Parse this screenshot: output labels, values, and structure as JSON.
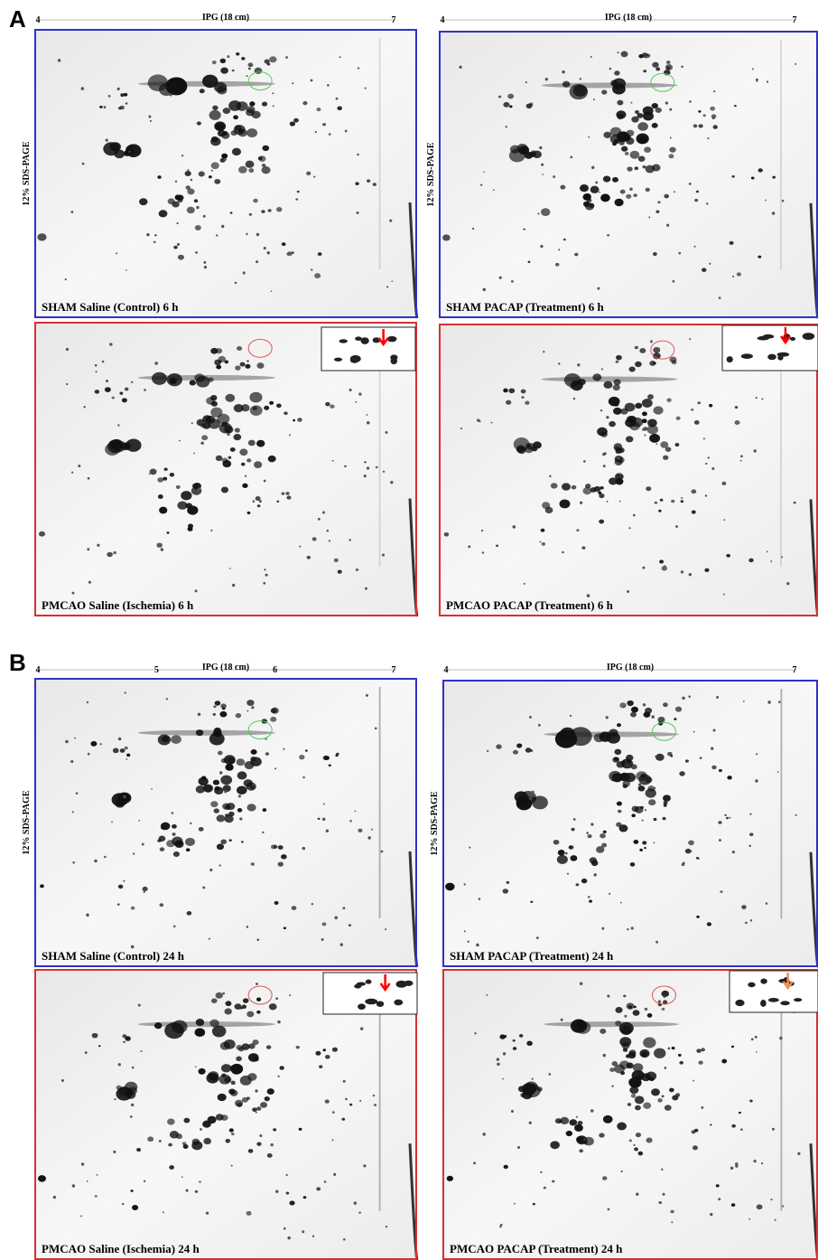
{
  "panels": [
    {
      "label": "A",
      "gels": [
        {
          "caption": "SHAM Saline (Control) 6 h",
          "ipg": "IPG (18 cm)",
          "ticks": [
            "4",
            "7"
          ],
          "sds": "12% SDS-PAGE"
        },
        {
          "caption": "SHAM PACAP (Treatment) 6 h",
          "ipg": "IPG (18 cm)",
          "ticks": [
            "4",
            "7"
          ],
          "sds": "12% SDS-PAGE"
        },
        {
          "caption": "PMCAO Saline (Ischemia) 6 h"
        },
        {
          "caption": "PMCAO PACAP (Treatment) 6 h"
        }
      ]
    },
    {
      "label": "B",
      "gels": [
        {
          "caption": "SHAM Saline (Control) 24 h",
          "ipg": "IPG (18 cm)",
          "ticks": [
            "4",
            "5",
            "6",
            "7"
          ],
          "sds": "12% SDS-PAGE"
        },
        {
          "caption": "SHAM PACAP (Treatment) 24 h",
          "ipg": "IPG (18 cm)",
          "ticks": [
            "4",
            "7"
          ],
          "sds": "12% SDS-PAGE"
        },
        {
          "caption": "PMCAO Saline (Ischemia) 24 h"
        },
        {
          "caption": "PMCAO PACAP (Treatment) 24 h"
        }
      ]
    }
  ]
}
